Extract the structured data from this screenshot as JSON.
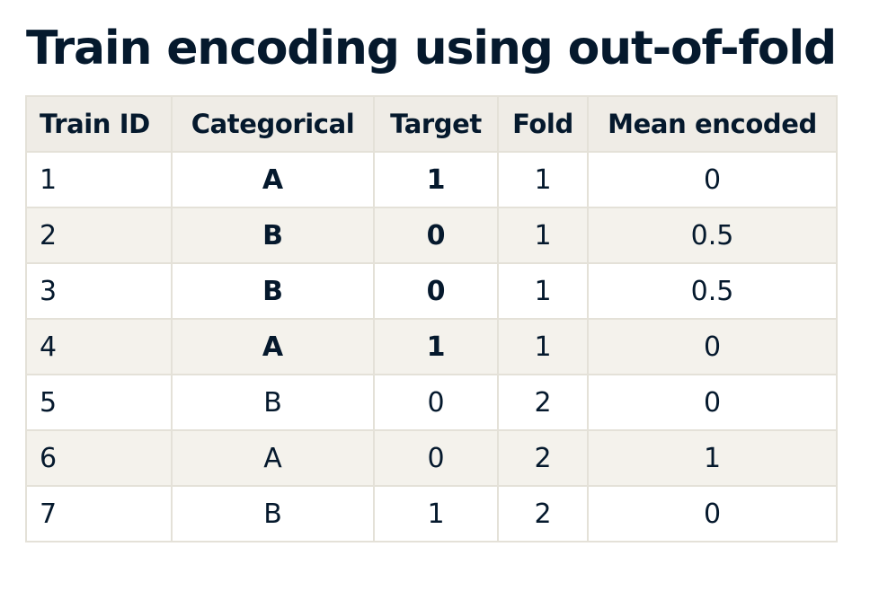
{
  "title": "Train encoding using out-of-fold",
  "table": {
    "headers": [
      "Train ID",
      "Categorical",
      "Target",
      "Fold",
      "Mean encoded"
    ],
    "rows": [
      {
        "id": "1",
        "categorical": "A",
        "target": "1",
        "fold": "1",
        "mean_encoded": "0",
        "bold": true
      },
      {
        "id": "2",
        "categorical": "B",
        "target": "0",
        "fold": "1",
        "mean_encoded": "0.5",
        "bold": true
      },
      {
        "id": "3",
        "categorical": "B",
        "target": "0",
        "fold": "1",
        "mean_encoded": "0.5",
        "bold": true
      },
      {
        "id": "4",
        "categorical": "A",
        "target": "1",
        "fold": "1",
        "mean_encoded": "0",
        "bold": true
      },
      {
        "id": "5",
        "categorical": "B",
        "target": "0",
        "fold": "2",
        "mean_encoded": "0",
        "bold": false
      },
      {
        "id": "6",
        "categorical": "A",
        "target": "0",
        "fold": "2",
        "mean_encoded": "1",
        "bold": false
      },
      {
        "id": "7",
        "categorical": "B",
        "target": "1",
        "fold": "2",
        "mean_encoded": "0",
        "bold": false
      }
    ]
  },
  "colors": {
    "text": "#05192d",
    "header_bg": "#efece6",
    "stripe_bg": "#f4f2ec",
    "border": "#e4e1d8"
  }
}
